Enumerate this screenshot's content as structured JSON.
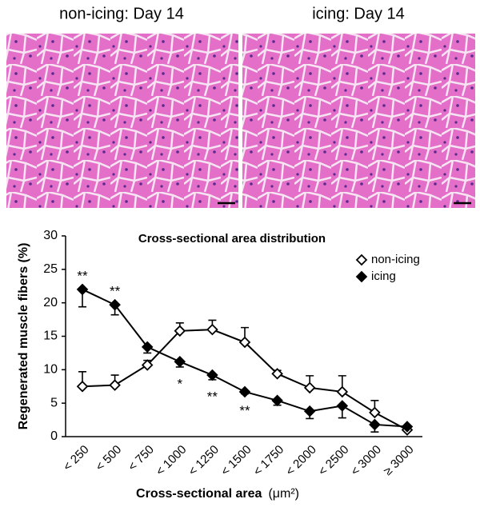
{
  "panels": [
    {
      "label": "non-icing: Day 14"
    },
    {
      "label": "icing: Day 14"
    }
  ],
  "chart_data": {
    "type": "line",
    "title": "Cross-sectional area distribution",
    "ylabel": "Regenerated muscle fibers (%)",
    "xlabel": "Cross-sectional area",
    "xlabel_unit": "(μm²)",
    "categories": [
      "< 250",
      "< 500",
      "< 750",
      "< 1000",
      "< 1250",
      "< 1500",
      "< 1750",
      "< 2000",
      "< 2500",
      "< 3000",
      "≥ 3000"
    ],
    "series": [
      {
        "name": "non-icing",
        "color": "#000000",
        "marker_fill": "#ffffff",
        "error_direction": "up",
        "values": [
          7.5,
          7.7,
          10.7,
          15.8,
          16.0,
          14.1,
          9.4,
          7.3,
          6.7,
          3.6,
          1.0
        ],
        "errors": [
          2.2,
          1.5,
          0.7,
          1.2,
          1.4,
          2.2,
          0.5,
          1.8,
          2.4,
          1.8,
          0.2
        ]
      },
      {
        "name": "icing",
        "color": "#000000",
        "marker_fill": "#000000",
        "error_direction": "down",
        "values": [
          22.0,
          19.7,
          13.4,
          11.2,
          9.2,
          6.7,
          5.4,
          3.8,
          4.6,
          1.8,
          1.5
        ],
        "errors": [
          2.6,
          1.5,
          0.9,
          0.8,
          0.7,
          0.3,
          0.7,
          1.1,
          1.8,
          1.1,
          0.3
        ]
      }
    ],
    "annotations": [
      {
        "text": "**",
        "category": "< 250",
        "position": "above"
      },
      {
        "text": "**",
        "category": "< 500",
        "position": "above"
      },
      {
        "text": "*",
        "category": "< 1000",
        "position": "below"
      },
      {
        "text": "**",
        "category": "< 1250",
        "position": "below"
      },
      {
        "text": "**",
        "category": "< 1500",
        "position": "below"
      }
    ],
    "ylim": [
      0,
      30
    ],
    "yticks": [
      0,
      5,
      10,
      15,
      20,
      25,
      30
    ],
    "legend": "upper right"
  }
}
